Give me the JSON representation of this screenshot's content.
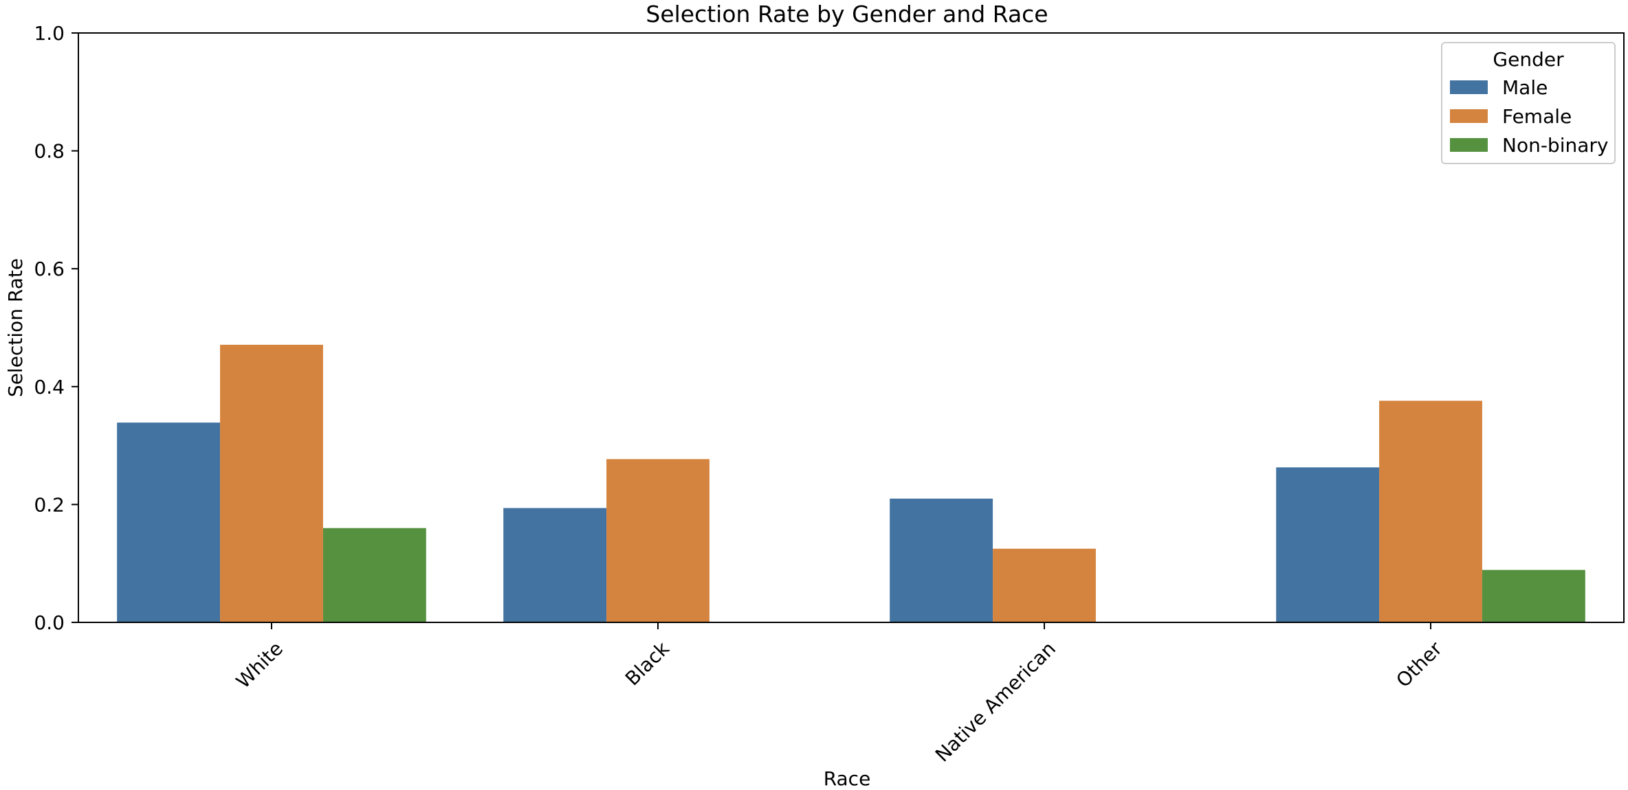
{
  "chart_data": {
    "type": "bar",
    "title": "Selection Rate by Gender and Race",
    "xlabel": "Race",
    "ylabel": "Selection Rate",
    "categories": [
      "White",
      "Black",
      "Native American",
      "Other"
    ],
    "ylim": [
      0,
      1.0
    ],
    "yticks": [
      "0.0",
      "0.2",
      "0.4",
      "0.6",
      "0.8",
      "1.0"
    ],
    "grid": false,
    "legend": {
      "title": "Gender",
      "position": "top-right"
    },
    "series": [
      {
        "name": "Male",
        "color": "#4373a0",
        "values": [
          0.339,
          0.194,
          0.21,
          0.263
        ]
      },
      {
        "name": "Female",
        "color": "#d5843f",
        "values": [
          0.471,
          0.277,
          0.125,
          0.376
        ]
      },
      {
        "name": "Non-binary",
        "color": "#55913f",
        "values": [
          0.16,
          null,
          null,
          0.089
        ]
      }
    ]
  }
}
